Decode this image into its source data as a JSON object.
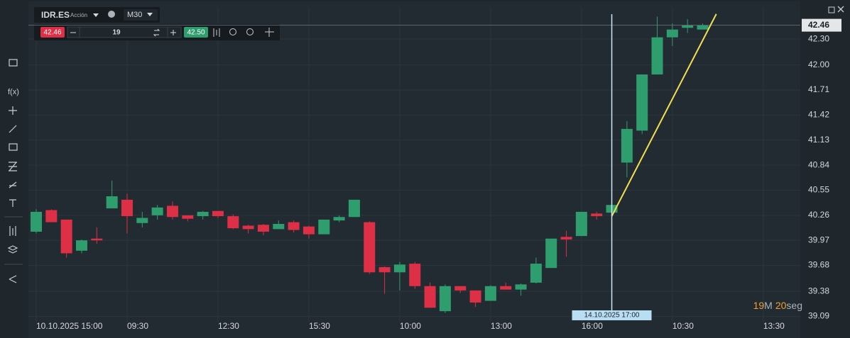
{
  "toolbar": {
    "symbol": "IDR.ES",
    "asset_type": "Acción",
    "timeframe": "M30",
    "sell_price": "42.46",
    "quantity": "19",
    "buy_price": "42.50"
  },
  "countdown": {
    "minutes": "19",
    "minutes_unit": "M",
    "seconds": "20",
    "seconds_unit": "seg"
  },
  "chart_data": {
    "type": "candlestick",
    "categories": [
      "10.10.2025 15:00",
      null,
      null,
      null,
      null,
      null,
      "09:30",
      null,
      null,
      null,
      null,
      null,
      "12:30",
      null,
      null,
      null,
      null,
      null,
      "15:30",
      null,
      null,
      null,
      null,
      null,
      "10:00",
      null,
      null,
      null,
      null,
      null,
      "13:00",
      null,
      null,
      null,
      null,
      null,
      "16:00",
      null,
      null,
      null,
      null,
      null,
      "10:30",
      null,
      null,
      null,
      null,
      null,
      "13:30"
    ],
    "open": [
      40.07,
      40.32,
      40.21,
      39.85,
      39.99,
      40.34,
      40.44,
      40.17,
      40.26,
      40.37,
      40.26,
      40.25,
      40.31,
      40.25,
      40.14,
      40.15,
      40.1,
      40.18,
      40.13,
      40.04,
      40.2,
      40.24,
      40.18,
      39.66,
      39.6,
      39.7,
      39.44,
      39.15,
      39.44,
      39.39,
      39.27,
      39.44,
      39.4,
      39.48,
      39.65,
      40.01,
      40.02,
      40.28,
      40.29,
      40.87,
      41.24,
      41.89,
      42.32,
      42.43,
      42.41,
      null,
      null,
      null,
      null
    ],
    "high": [
      40.33,
      40.33,
      40.21,
      39.98,
      40.12,
      40.66,
      40.51,
      40.3,
      40.38,
      40.42,
      40.26,
      40.31,
      40.31,
      40.27,
      40.15,
      40.16,
      40.2,
      40.2,
      40.14,
      40.21,
      40.26,
      40.44,
      40.19,
      39.67,
      39.72,
      39.72,
      39.48,
      39.46,
      39.44,
      39.39,
      39.45,
      39.48,
      39.47,
      39.77,
      39.99,
      40.08,
      40.3,
      40.3,
      40.38,
      41.35,
      41.89,
      42.56,
      42.48,
      42.53,
      42.48,
      null,
      null,
      null,
      null
    ],
    "low": [
      40.05,
      40.18,
      39.77,
      39.82,
      39.93,
      40.34,
      40.05,
      40.12,
      40.21,
      40.21,
      40.19,
      40.21,
      40.23,
      40.1,
      40.05,
      40.03,
      40.1,
      40.06,
      39.99,
      40.04,
      40.18,
      40.24,
      39.58,
      39.35,
      39.39,
      39.41,
      39.19,
      39.13,
      39.36,
      39.2,
      39.27,
      39.4,
      39.33,
      39.47,
      39.65,
      39.78,
      40.02,
      40.21,
      40.28,
      40.7,
      41.2,
      41.89,
      42.22,
      42.37,
      42.41,
      null,
      null,
      null,
      null
    ],
    "close": [
      40.3,
      40.18,
      39.82,
      39.97,
      39.97,
      40.48,
      40.25,
      40.23,
      40.35,
      40.24,
      40.22,
      40.3,
      40.25,
      40.11,
      40.1,
      40.07,
      40.16,
      40.09,
      40.04,
      40.21,
      40.24,
      40.44,
      39.6,
      39.6,
      39.69,
      39.44,
      39.19,
      39.44,
      39.39,
      39.25,
      39.44,
      39.4,
      39.46,
      39.7,
      39.99,
      39.98,
      40.3,
      40.25,
      40.38,
      41.26,
      41.89,
      42.32,
      42.41,
      42.46,
      42.46,
      null,
      null,
      null,
      null
    ],
    "up_color": "#2f9e6e",
    "down_color": "#dd2f45",
    "ylim": [
      39.02,
      42.67
    ],
    "yticks": [
      {
        "value": 42.3,
        "label": "42.30"
      },
      {
        "value": 42.0,
        "label": "42.00"
      },
      41.71,
      41.42,
      41.13,
      40.84,
      40.55,
      40.26,
      39.97,
      39.68,
      39.38,
      39.09
    ],
    "grid": true,
    "current_price": 42.46,
    "crosshair": {
      "at": 38,
      "label": "14.10.2025 17:00"
    },
    "trendline": {
      "color": "#f2df4f",
      "points": [
        [
          38,
          40.25
        ],
        [
          44.9,
          42.59
        ]
      ]
    }
  }
}
